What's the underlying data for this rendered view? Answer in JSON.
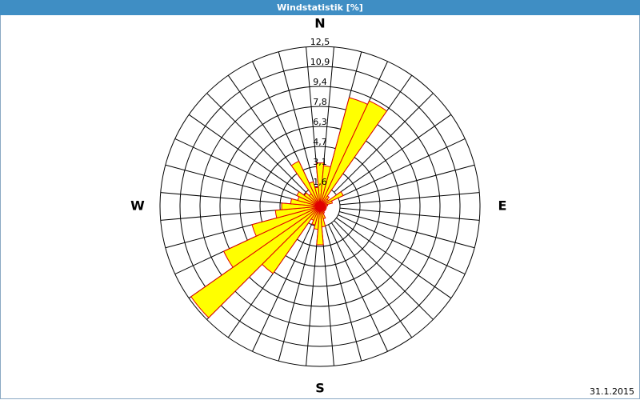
{
  "chart_data": {
    "type": "wind-rose",
    "title": "Windstatistik [%]",
    "date": "31.1.2015",
    "categories": [
      "N",
      null,
      null,
      null,
      null,
      null,
      null,
      null,
      null,
      "E",
      null,
      null,
      null,
      null,
      null,
      null,
      null,
      null,
      "S",
      null,
      null,
      null,
      null,
      null,
      null,
      null,
      null,
      "W",
      null,
      null,
      null,
      null,
      null,
      null,
      null,
      null
    ],
    "values": [
      3.4,
      3.2,
      8.8,
      9.1,
      1.0,
      0.8,
      2.0,
      1.0,
      0.6,
      0.5,
      0.5,
      0.5,
      0.5,
      0.5,
      0.5,
      0.6,
      1.0,
      1.6,
      3.0,
      1.8,
      1.5,
      1.2,
      6.4,
      12.3,
      8.3,
      5.5,
      3.5,
      3.0,
      2.3,
      1.8,
      2.0,
      1.5,
      1.2,
      3.9,
      2.0,
      1.5
    ],
    "color": "#ffff00",
    "edge_color": "#e00000",
    "rlim": [
      0,
      12.5
    ],
    "rticks": [
      {
        "value": 1.5625,
        "label": "1,6"
      },
      {
        "value": 3.125,
        "label": "3,1"
      },
      {
        "value": 4.6875,
        "label": "4,7"
      },
      {
        "value": 6.25,
        "label": "6,3"
      },
      {
        "value": 7.8125,
        "label": "7,8"
      },
      {
        "value": 9.375,
        "label": "9,4"
      },
      {
        "value": 10.9375,
        "label": "10,9"
      },
      {
        "value": 12.5,
        "label": "12,5"
      }
    ],
    "grid": true
  }
}
